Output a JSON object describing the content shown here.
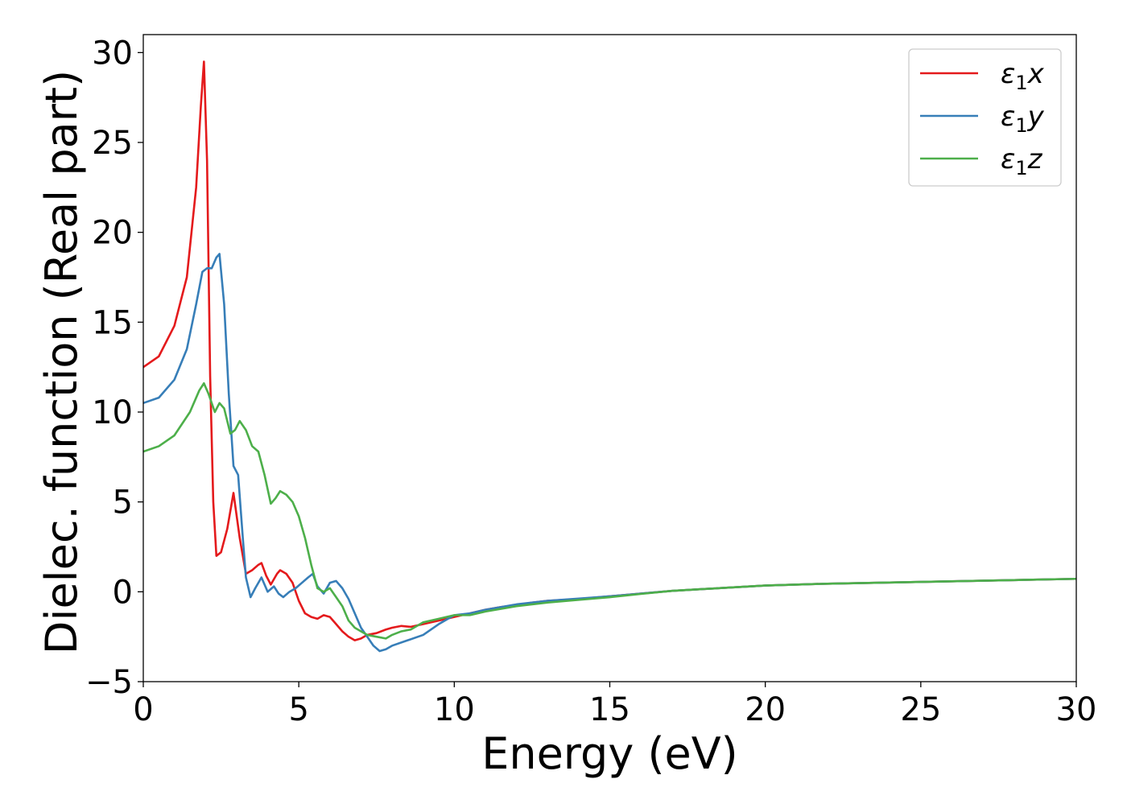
{
  "chart_data": {
    "type": "line",
    "title": "",
    "xlabel": "Energy (eV)",
    "ylabel": "Dielec. function (Real part)",
    "xlim": [
      0,
      30
    ],
    "ylim": [
      -5,
      31
    ],
    "xticks": [
      0,
      5,
      10,
      15,
      20,
      25,
      30
    ],
    "xtick_labels": [
      "0",
      "5",
      "10",
      "15",
      "20",
      "25",
      "30"
    ],
    "yticks": [
      -5,
      0,
      5,
      10,
      15,
      20,
      25,
      30
    ],
    "ytick_labels": [
      "−5",
      "0",
      "5",
      "10",
      "15",
      "20",
      "25",
      "30"
    ],
    "grid": false,
    "legend_position": "top-right",
    "series": [
      {
        "name": "ε1x",
        "label_main": "ε",
        "label_sub": "1",
        "label_suffix": "x",
        "color": "#e41a1c",
        "x": [
          0,
          0.5,
          1.0,
          1.4,
          1.7,
          1.85,
          1.95,
          2.05,
          2.15,
          2.25,
          2.35,
          2.5,
          2.7,
          2.9,
          3.1,
          3.3,
          3.5,
          3.7,
          3.8,
          3.95,
          4.1,
          4.3,
          4.4,
          4.6,
          4.8,
          5.0,
          5.2,
          5.4,
          5.6,
          5.8,
          6.0,
          6.2,
          6.4,
          6.6,
          6.8,
          7.0,
          7.2,
          7.5,
          7.8,
          8.0,
          8.3,
          8.6,
          9.0,
          9.5,
          10.0,
          10.5,
          11.0,
          11.5,
          12.0,
          12.5,
          13.0,
          13.5,
          14.0,
          15.0,
          16.0,
          17.0,
          18.0,
          20.0,
          22.0,
          25.0,
          28.0,
          30.0
        ],
        "y": [
          12.5,
          13.1,
          14.8,
          17.5,
          22.5,
          27.0,
          29.5,
          24.0,
          12.0,
          5.0,
          2.0,
          2.2,
          3.5,
          5.5,
          3.0,
          1.0,
          1.2,
          1.5,
          1.6,
          0.9,
          0.4,
          1.0,
          1.2,
          1.0,
          0.5,
          -0.5,
          -1.2,
          -1.4,
          -1.5,
          -1.3,
          -1.4,
          -1.8,
          -2.2,
          -2.5,
          -2.7,
          -2.6,
          -2.4,
          -2.3,
          -2.1,
          -2.0,
          -1.9,
          -1.95,
          -1.8,
          -1.6,
          -1.4,
          -1.2,
          -1.0,
          -0.85,
          -0.75,
          -0.6,
          -0.5,
          -0.45,
          -0.4,
          -0.25,
          -0.1,
          0.05,
          0.15,
          0.35,
          0.45,
          0.55,
          0.65,
          0.72
        ]
      },
      {
        "name": "ε1y",
        "label_main": "ε",
        "label_sub": "1",
        "label_suffix": "y",
        "color": "#377eb8",
        "x": [
          0,
          0.5,
          1.0,
          1.4,
          1.7,
          1.9,
          2.05,
          2.2,
          2.35,
          2.45,
          2.6,
          2.75,
          2.9,
          3.05,
          3.2,
          3.3,
          3.45,
          3.6,
          3.8,
          4.0,
          4.2,
          4.35,
          4.5,
          4.7,
          4.9,
          5.1,
          5.3,
          5.45,
          5.6,
          5.8,
          6.0,
          6.2,
          6.4,
          6.6,
          6.8,
          7.0,
          7.2,
          7.4,
          7.6,
          7.8,
          8.0,
          8.5,
          9.0,
          9.5,
          10.0,
          10.5,
          11.0,
          12.0,
          13.0,
          14.0,
          15.0,
          16.0,
          17.0,
          18.0,
          20.0,
          22.0,
          25.0,
          28.0,
          30.0
        ],
        "y": [
          10.5,
          10.8,
          11.8,
          13.5,
          16.0,
          17.8,
          18.0,
          18.0,
          18.6,
          18.8,
          16.0,
          11.0,
          7.0,
          6.5,
          3.0,
          0.8,
          -0.3,
          0.2,
          0.8,
          0.0,
          0.3,
          -0.1,
          -0.3,
          0.0,
          0.2,
          0.5,
          0.8,
          1.0,
          0.3,
          -0.1,
          0.5,
          0.6,
          0.2,
          -0.4,
          -1.2,
          -2.0,
          -2.5,
          -3.0,
          -3.3,
          -3.2,
          -3.0,
          -2.7,
          -2.4,
          -1.8,
          -1.3,
          -1.2,
          -1.0,
          -0.7,
          -0.5,
          -0.38,
          -0.25,
          -0.1,
          0.05,
          0.15,
          0.35,
          0.45,
          0.55,
          0.65,
          0.72
        ]
      },
      {
        "name": "ε1z",
        "label_main": "ε",
        "label_sub": "1",
        "label_suffix": "z",
        "color": "#4daf4a",
        "x": [
          0,
          0.5,
          1.0,
          1.5,
          1.8,
          1.95,
          2.1,
          2.3,
          2.45,
          2.6,
          2.8,
          2.95,
          3.1,
          3.3,
          3.5,
          3.7,
          3.9,
          4.1,
          4.25,
          4.4,
          4.6,
          4.8,
          5.0,
          5.2,
          5.4,
          5.6,
          5.8,
          6.0,
          6.2,
          6.4,
          6.6,
          6.8,
          7.0,
          7.2,
          7.5,
          7.8,
          8.0,
          8.3,
          8.6,
          9.0,
          9.5,
          10.0,
          10.5,
          11.0,
          12.0,
          13.0,
          14.0,
          15.0,
          16.0,
          17.0,
          18.0,
          20.0,
          22.0,
          25.0,
          28.0,
          30.0
        ],
        "y": [
          7.8,
          8.1,
          8.7,
          10.0,
          11.2,
          11.6,
          11.0,
          10.0,
          10.5,
          10.2,
          8.8,
          9.0,
          9.5,
          9.0,
          8.1,
          7.8,
          6.5,
          4.9,
          5.2,
          5.6,
          5.4,
          5.0,
          4.2,
          3.0,
          1.5,
          0.2,
          0.0,
          0.2,
          -0.3,
          -0.8,
          -1.6,
          -2.0,
          -2.2,
          -2.4,
          -2.5,
          -2.6,
          -2.4,
          -2.2,
          -2.1,
          -1.7,
          -1.5,
          -1.3,
          -1.3,
          -1.1,
          -0.8,
          -0.6,
          -0.45,
          -0.3,
          -0.12,
          0.05,
          0.15,
          0.35,
          0.45,
          0.55,
          0.65,
          0.72
        ]
      }
    ]
  }
}
